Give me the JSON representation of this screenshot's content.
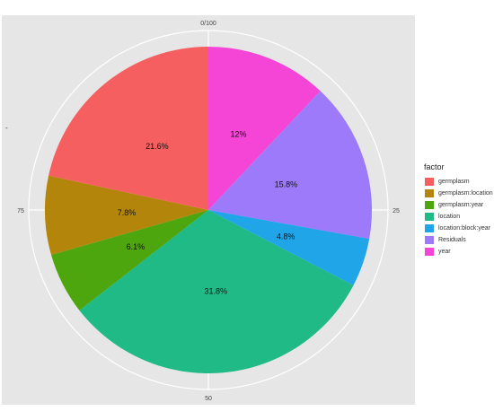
{
  "chart_data": {
    "type": "pie",
    "legend_title": "factor",
    "legend_position": "right",
    "y_axis_title": "-",
    "angle_tick_labels": [
      "0/100",
      "25",
      "50",
      "75"
    ],
    "slices": [
      {
        "name": "year",
        "value": 12.0,
        "label": "12%",
        "color": "#F545D7"
      },
      {
        "name": "Residuals",
        "value": 15.8,
        "label": "15.8%",
        "color": "#9C7AFA"
      },
      {
        "name": "location:block:year",
        "value": 4.8,
        "label": "4.8%",
        "color": "#1FA5E8"
      },
      {
        "name": "location",
        "value": 31.8,
        "label": "31.8%",
        "color": "#1FBA86"
      },
      {
        "name": "germplasm:year",
        "value": 6.1,
        "label": "6.1%",
        "color": "#4DA60D"
      },
      {
        "name": "germplasm:location",
        "value": 7.8,
        "label": "7.8%",
        "color": "#B3860B"
      },
      {
        "name": "germplasm",
        "value": 21.6,
        "label": "21.6%",
        "color": "#F55F5F"
      }
    ],
    "legend": [
      {
        "name": "germplasm",
        "color": "#F55F5F"
      },
      {
        "name": "germplasm:location",
        "color": "#B3860B"
      },
      {
        "name": "germplasm:year",
        "color": "#4DA60D"
      },
      {
        "name": "location",
        "color": "#1FBA86"
      },
      {
        "name": "location:block:year",
        "color": "#1FA5E8"
      },
      {
        "name": "Residuals",
        "color": "#9C7AFA"
      },
      {
        "name": "year",
        "color": "#F545D7"
      }
    ],
    "panel_background": "#E6E6E6"
  }
}
